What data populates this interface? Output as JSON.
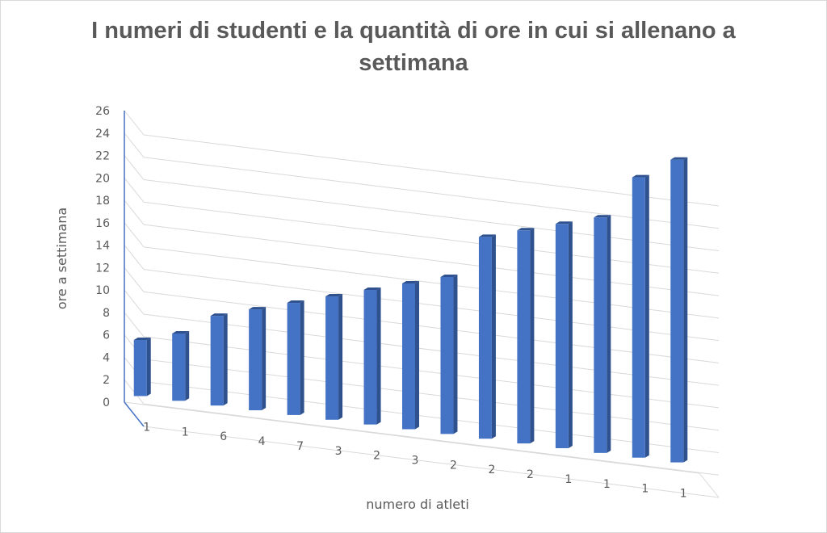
{
  "chart_data": {
    "type": "bar",
    "title": "I numeri di studenti e la quantità di ore in cui si allenano a settimana",
    "xlabel": "numero di atleti",
    "ylabel": "ore a settimana",
    "categories": [
      "1",
      "1",
      "6",
      "4",
      "7",
      "3",
      "2",
      "3",
      "2",
      "2",
      "2",
      "1",
      "1",
      "1",
      "1"
    ],
    "values": [
      5,
      6,
      8,
      9,
      10,
      11,
      12,
      13,
      14,
      18,
      19,
      20,
      21,
      25,
      27
    ],
    "ylim": [
      0,
      26
    ],
    "yticks": [
      "0",
      "2",
      "4",
      "6",
      "8",
      "10",
      "12",
      "14",
      "16",
      "18",
      "20",
      "22",
      "24",
      "26"
    ],
    "grid": true,
    "bar_color": "#4472C4"
  }
}
